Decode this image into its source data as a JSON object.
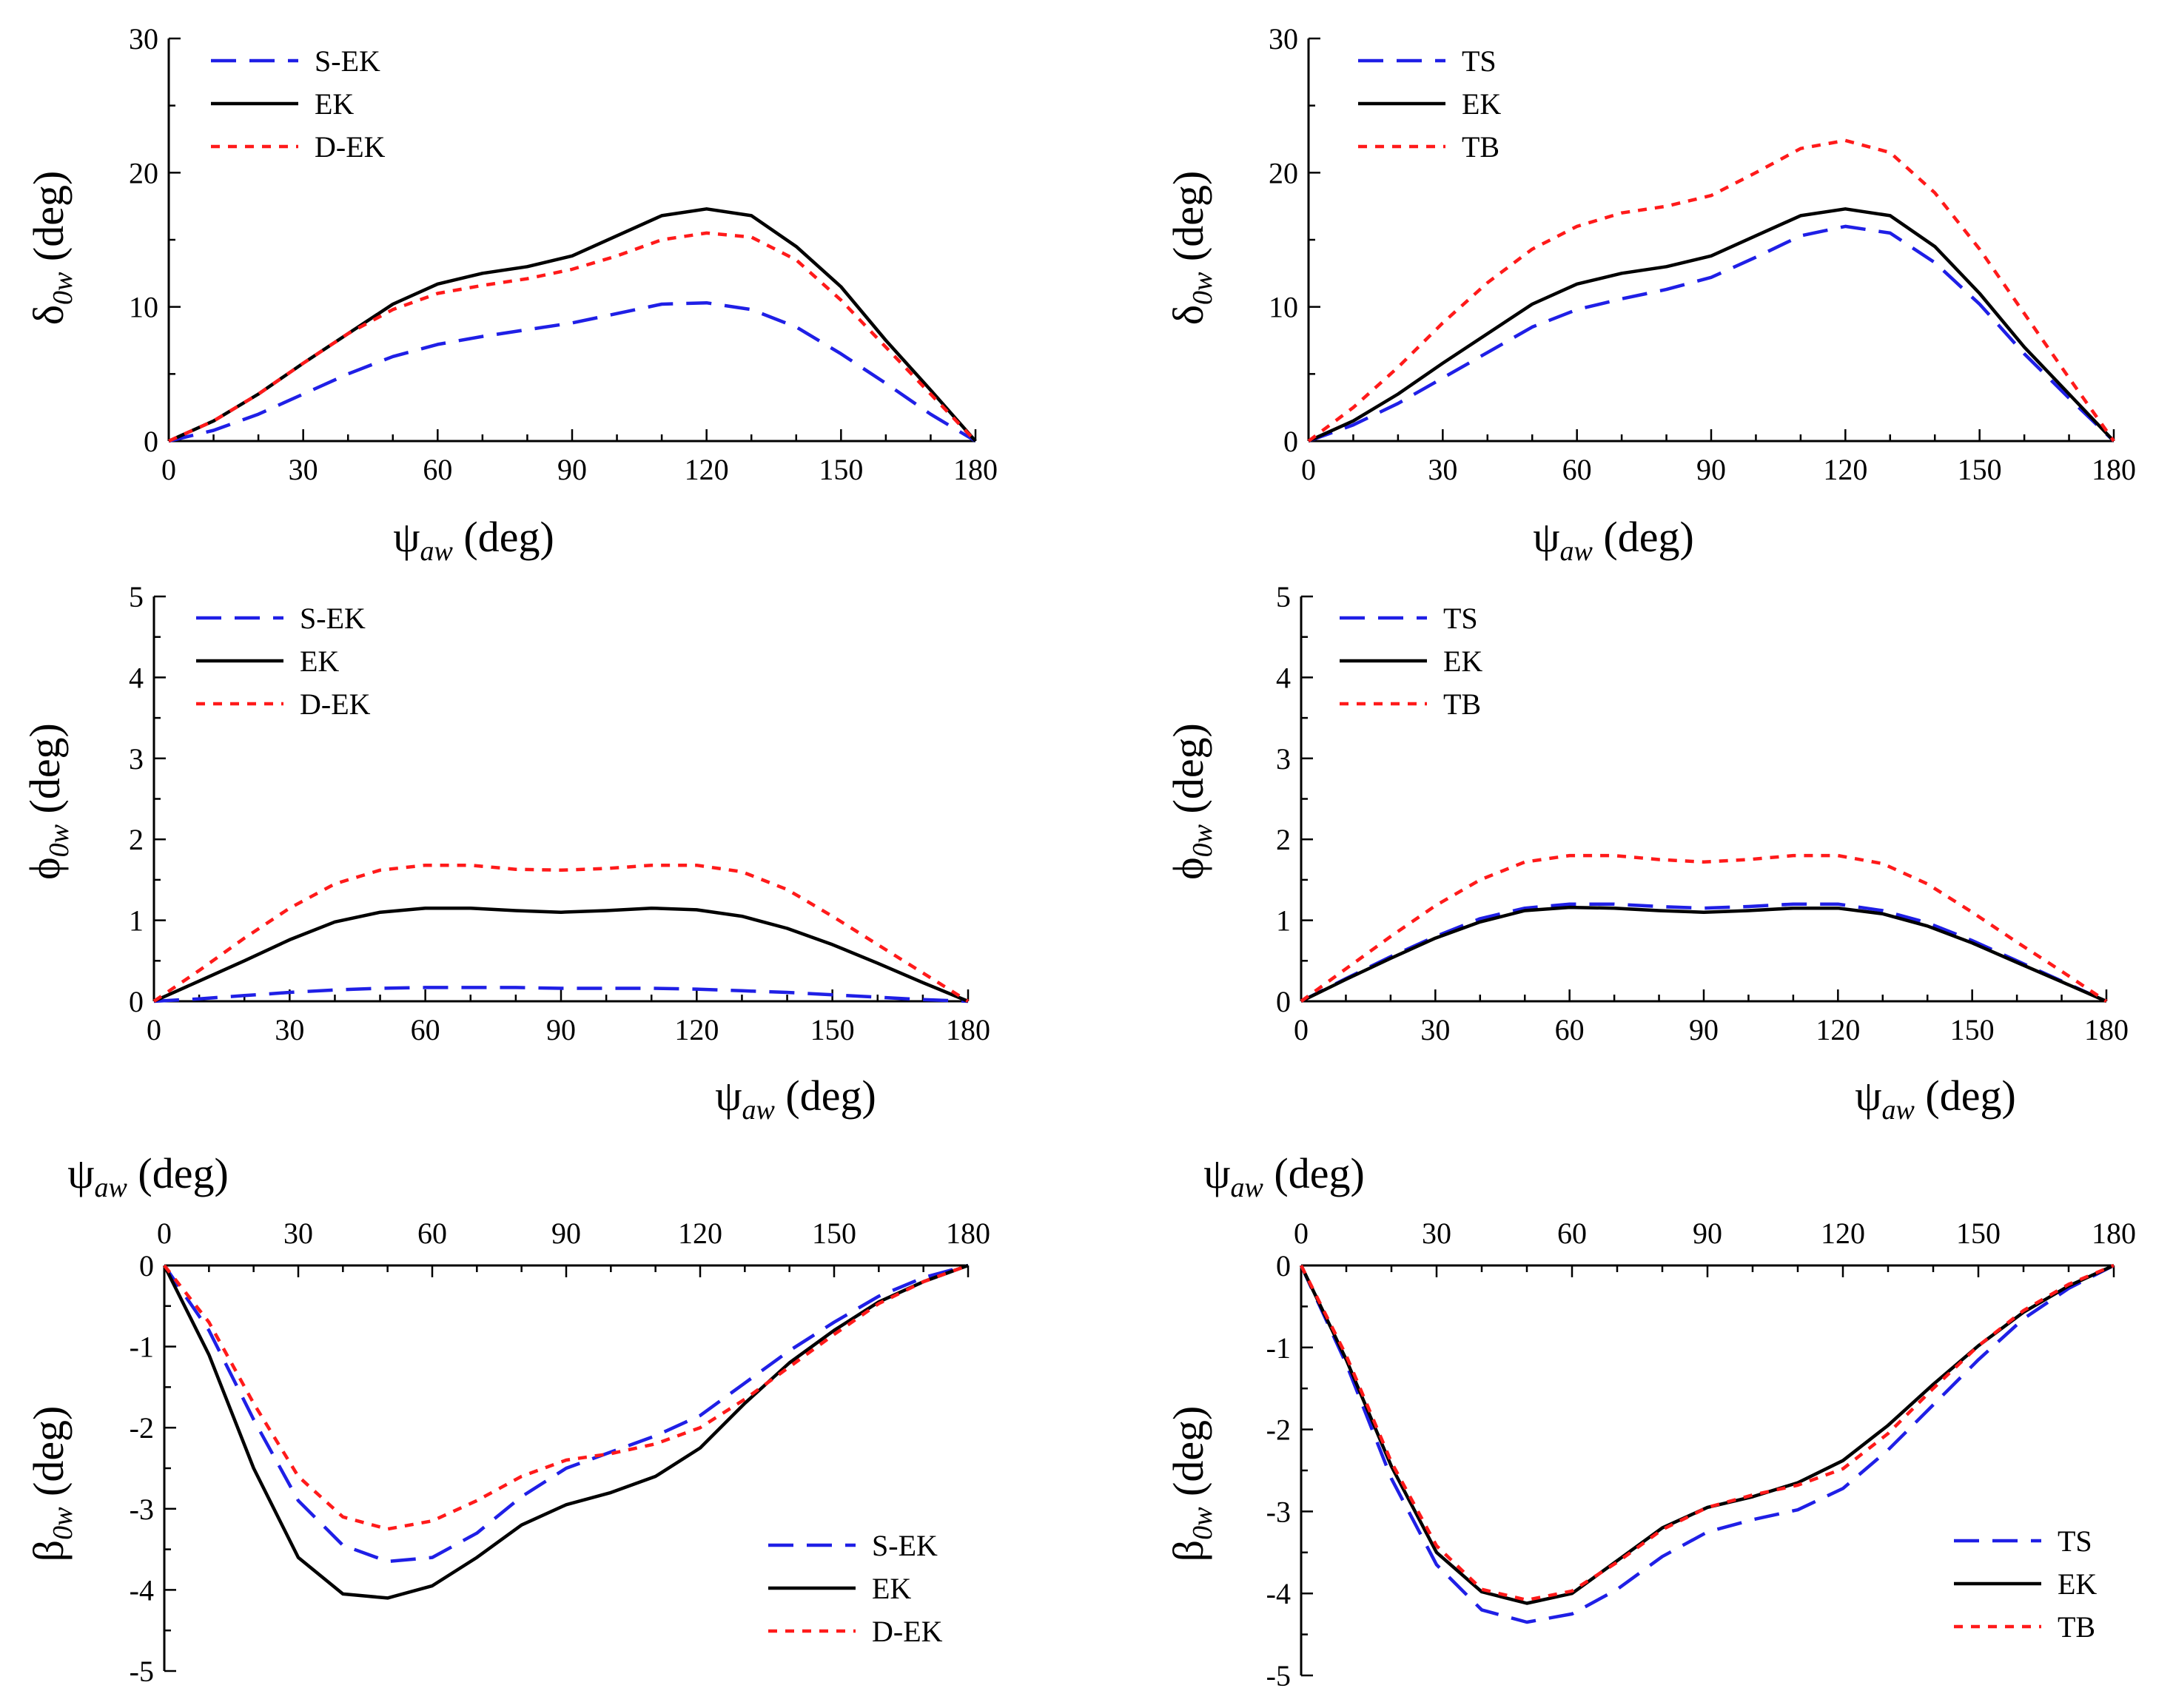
{
  "colors": {
    "blue": "#1f1fe6",
    "black": "#000000",
    "red": "#ff1a1a"
  },
  "chart_data": [
    {
      "id": "A",
      "type": "line",
      "panel": "top-left",
      "xlabel": {
        "main": "ψ",
        "sub": "aw",
        "unit": "(deg)"
      },
      "ylabel": {
        "main": "δ",
        "sub": "0w",
        "unit": "(deg)"
      },
      "xlim": [
        0,
        180
      ],
      "ylim": [
        0,
        30
      ],
      "xticks": [
        0,
        30,
        60,
        90,
        120,
        150,
        180
      ],
      "yticks": [
        0,
        10,
        20,
        30
      ],
      "legend_position": "top-left",
      "x": [
        0,
        10,
        20,
        30,
        40,
        50,
        60,
        70,
        80,
        90,
        100,
        110,
        120,
        130,
        140,
        150,
        160,
        170,
        180
      ],
      "series": [
        {
          "name": "S-EK",
          "style": "long-dash",
          "color": "blue",
          "values": [
            0,
            0.8,
            2,
            3.5,
            5,
            6.3,
            7.2,
            7.8,
            8.3,
            8.8,
            9.5,
            10.2,
            10.3,
            9.8,
            8.5,
            6.5,
            4.3,
            2,
            0
          ]
        },
        {
          "name": "EK",
          "style": "solid",
          "color": "black",
          "values": [
            0,
            1.5,
            3.5,
            5.8,
            8,
            10.2,
            11.7,
            12.5,
            13,
            13.8,
            15.3,
            16.8,
            17.3,
            16.8,
            14.5,
            11.5,
            7.5,
            3.8,
            0
          ]
        },
        {
          "name": "D-EK",
          "style": "short-dash",
          "color": "red",
          "values": [
            0,
            1.5,
            3.5,
            5.8,
            8,
            9.8,
            11,
            11.6,
            12.1,
            12.8,
            13.8,
            15,
            15.5,
            15.2,
            13.5,
            10.5,
            7,
            3.5,
            0
          ]
        }
      ]
    },
    {
      "id": "B",
      "type": "line",
      "panel": "top-right",
      "xlabel": {
        "main": "ψ",
        "sub": "aw",
        "unit": "(deg)"
      },
      "ylabel": {
        "main": "δ",
        "sub": "0w",
        "unit": "(deg)"
      },
      "xlim": [
        0,
        180
      ],
      "ylim": [
        0,
        30
      ],
      "xticks": [
        0,
        30,
        60,
        90,
        120,
        150,
        180
      ],
      "yticks": [
        0,
        10,
        20,
        30
      ],
      "legend_position": "top-left",
      "x": [
        0,
        10,
        20,
        30,
        40,
        50,
        60,
        70,
        80,
        90,
        100,
        110,
        120,
        130,
        140,
        150,
        160,
        170,
        180
      ],
      "series": [
        {
          "name": "TS",
          "style": "long-dash",
          "color": "blue",
          "values": [
            0,
            1.2,
            2.8,
            4.7,
            6.6,
            8.5,
            9.8,
            10.6,
            11.3,
            12.2,
            13.7,
            15.3,
            16,
            15.5,
            13.3,
            10.2,
            6.5,
            3.2,
            0
          ]
        },
        {
          "name": "EK",
          "style": "solid",
          "color": "black",
          "values": [
            0,
            1.5,
            3.5,
            5.8,
            8,
            10.2,
            11.7,
            12.5,
            13,
            13.8,
            15.3,
            16.8,
            17.3,
            16.8,
            14.5,
            11,
            7,
            3.5,
            0
          ]
        },
        {
          "name": "TB",
          "style": "short-dash",
          "color": "red",
          "values": [
            0,
            2.5,
            5.5,
            8.8,
            11.8,
            14.3,
            16,
            17,
            17.5,
            18.3,
            20,
            21.8,
            22.4,
            21.5,
            18.5,
            14.3,
            9.5,
            4.7,
            0
          ]
        }
      ]
    },
    {
      "id": "C",
      "type": "line",
      "panel": "middle-left",
      "xlabel": {
        "main": "ψ",
        "sub": "aw",
        "unit": "(deg)"
      },
      "ylabel": {
        "main": "ϕ",
        "sub": "0w",
        "unit": "(deg)"
      },
      "xlim": [
        0,
        180
      ],
      "ylim": [
        0,
        5
      ],
      "xticks": [
        0,
        30,
        60,
        90,
        120,
        150,
        180
      ],
      "yticks": [
        0,
        1,
        2,
        3,
        4,
        5
      ],
      "legend_position": "top-left",
      "x": [
        0,
        10,
        20,
        30,
        40,
        50,
        60,
        70,
        80,
        90,
        100,
        110,
        120,
        130,
        140,
        150,
        160,
        170,
        180
      ],
      "series": [
        {
          "name": "S-EK",
          "style": "long-dash",
          "color": "blue",
          "values": [
            0,
            0.03,
            0.07,
            0.11,
            0.14,
            0.16,
            0.17,
            0.17,
            0.17,
            0.16,
            0.16,
            0.16,
            0.15,
            0.13,
            0.11,
            0.08,
            0.05,
            0.02,
            0
          ]
        },
        {
          "name": "EK",
          "style": "solid",
          "color": "black",
          "values": [
            0,
            0.25,
            0.5,
            0.76,
            0.98,
            1.1,
            1.15,
            1.15,
            1.12,
            1.1,
            1.12,
            1.15,
            1.13,
            1.05,
            0.9,
            0.7,
            0.47,
            0.23,
            0
          ]
        },
        {
          "name": "D-EK",
          "style": "short-dash",
          "color": "red",
          "values": [
            0,
            0.38,
            0.78,
            1.15,
            1.45,
            1.62,
            1.68,
            1.68,
            1.63,
            1.62,
            1.64,
            1.68,
            1.68,
            1.6,
            1.38,
            1.05,
            0.7,
            0.35,
            0
          ]
        }
      ]
    },
    {
      "id": "D",
      "type": "line",
      "panel": "middle-right",
      "xlabel": {
        "main": "ψ",
        "sub": "aw",
        "unit": "(deg)"
      },
      "ylabel": {
        "main": "ϕ",
        "sub": "0w",
        "unit": "(deg)"
      },
      "xlim": [
        0,
        180
      ],
      "ylim": [
        0,
        5
      ],
      "xticks": [
        0,
        30,
        60,
        90,
        120,
        150,
        180
      ],
      "yticks": [
        0,
        1,
        2,
        3,
        4,
        5
      ],
      "legend_position": "top-left",
      "x": [
        0,
        10,
        20,
        30,
        40,
        50,
        60,
        70,
        80,
        90,
        100,
        110,
        120,
        130,
        140,
        150,
        160,
        170,
        180
      ],
      "series": [
        {
          "name": "TS",
          "style": "long-dash",
          "color": "blue",
          "values": [
            0,
            0.28,
            0.55,
            0.8,
            1.02,
            1.15,
            1.2,
            1.2,
            1.17,
            1.15,
            1.17,
            1.2,
            1.2,
            1.12,
            0.97,
            0.75,
            0.5,
            0.25,
            0
          ]
        },
        {
          "name": "EK",
          "style": "solid",
          "color": "black",
          "values": [
            0,
            0.27,
            0.53,
            0.78,
            0.98,
            1.12,
            1.16,
            1.15,
            1.12,
            1.1,
            1.12,
            1.15,
            1.15,
            1.08,
            0.93,
            0.72,
            0.48,
            0.24,
            0
          ]
        },
        {
          "name": "TB",
          "style": "short-dash",
          "color": "red",
          "values": [
            0,
            0.4,
            0.8,
            1.18,
            1.5,
            1.72,
            1.8,
            1.8,
            1.75,
            1.72,
            1.75,
            1.8,
            1.8,
            1.7,
            1.45,
            1.1,
            0.73,
            0.37,
            0
          ]
        }
      ]
    },
    {
      "id": "E",
      "type": "line",
      "panel": "bottom-left",
      "xlabel": {
        "main": "ψ",
        "sub": "aw",
        "unit": "(deg)"
      },
      "ylabel": {
        "main": "β",
        "sub": "0w",
        "unit": "(deg)"
      },
      "xlim": [
        0,
        180
      ],
      "ylim": [
        -5,
        0
      ],
      "x_axis_position": "top",
      "xticks": [
        0,
        30,
        60,
        90,
        120,
        150,
        180
      ],
      "yticks": [
        0,
        -1,
        -2,
        -3,
        -4,
        -5
      ],
      "legend_position": "bottom-right",
      "x": [
        0,
        10,
        20,
        30,
        40,
        50,
        60,
        70,
        80,
        90,
        100,
        110,
        120,
        130,
        140,
        150,
        160,
        170,
        180
      ],
      "series": [
        {
          "name": "S-EK",
          "style": "long-dash",
          "color": "blue",
          "values": [
            0,
            -0.8,
            -1.9,
            -2.9,
            -3.45,
            -3.65,
            -3.6,
            -3.3,
            -2.85,
            -2.5,
            -2.3,
            -2.1,
            -1.85,
            -1.45,
            -1.05,
            -0.7,
            -0.38,
            -0.15,
            0
          ]
        },
        {
          "name": "EK",
          "style": "solid",
          "color": "black",
          "values": [
            0,
            -1.1,
            -2.5,
            -3.6,
            -4.05,
            -4.1,
            -3.95,
            -3.6,
            -3.2,
            -2.95,
            -2.8,
            -2.6,
            -2.25,
            -1.7,
            -1.2,
            -0.8,
            -0.45,
            -0.2,
            0
          ]
        },
        {
          "name": "D-EK",
          "style": "short-dash",
          "color": "red",
          "values": [
            0,
            -0.7,
            -1.7,
            -2.6,
            -3.1,
            -3.25,
            -3.15,
            -2.9,
            -2.6,
            -2.4,
            -2.32,
            -2.2,
            -2.0,
            -1.65,
            -1.25,
            -0.85,
            -0.47,
            -0.2,
            0
          ]
        }
      ]
    },
    {
      "id": "F",
      "type": "line",
      "panel": "bottom-right",
      "xlabel": {
        "main": "ψ",
        "sub": "aw",
        "unit": "(deg)"
      },
      "ylabel": {
        "main": "β",
        "sub": "0w",
        "unit": "(deg)"
      },
      "xlim": [
        0,
        180
      ],
      "ylim": [
        -5,
        0
      ],
      "x_axis_position": "top",
      "xticks": [
        0,
        30,
        60,
        90,
        120,
        150,
        180
      ],
      "yticks": [
        0,
        -1,
        -2,
        -3,
        -4,
        -5
      ],
      "legend_position": "bottom-right",
      "x": [
        0,
        10,
        20,
        30,
        40,
        50,
        60,
        70,
        80,
        90,
        100,
        110,
        120,
        130,
        140,
        150,
        160,
        170,
        180
      ],
      "series": [
        {
          "name": "TS",
          "style": "long-dash",
          "color": "blue",
          "values": [
            0,
            -1.2,
            -2.6,
            -3.65,
            -4.2,
            -4.35,
            -4.25,
            -3.95,
            -3.55,
            -3.25,
            -3.1,
            -2.98,
            -2.72,
            -2.25,
            -1.7,
            -1.15,
            -0.65,
            -0.28,
            0
          ]
        },
        {
          "name": "EK",
          "style": "solid",
          "color": "black",
          "values": [
            0,
            -1.15,
            -2.45,
            -3.5,
            -3.98,
            -4.12,
            -4.0,
            -3.6,
            -3.2,
            -2.95,
            -2.82,
            -2.65,
            -2.38,
            -1.95,
            -1.45,
            -0.98,
            -0.57,
            -0.25,
            0
          ]
        },
        {
          "name": "TB",
          "style": "short-dash",
          "color": "red",
          "values": [
            0,
            -1.1,
            -2.4,
            -3.42,
            -3.95,
            -4.08,
            -3.97,
            -3.62,
            -3.22,
            -2.95,
            -2.8,
            -2.68,
            -2.48,
            -2.05,
            -1.5,
            -0.98,
            -0.55,
            -0.23,
            0
          ]
        }
      ]
    }
  ]
}
